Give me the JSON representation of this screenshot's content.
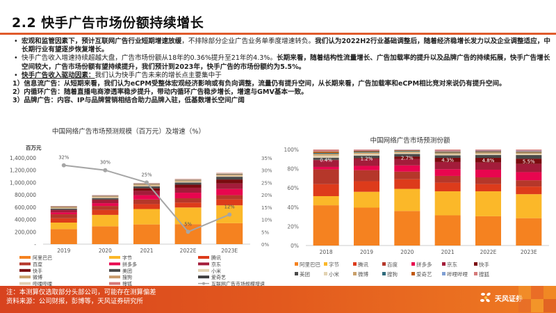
{
  "header": {
    "title": "2.2 快手广告市场份额持续增长"
  },
  "bullets": [
    {
      "segments": [
        {
          "text": "宏观和监管因素下，预计互联网广告行业短期增速放缓",
          "style": "b"
        },
        {
          "text": "，不排除部分企业广告业务单季度增速转负。",
          "style": ""
        },
        {
          "text": "我们认为2022H2行业基础调整后，随着经济稳增长发力以及企业调整适应，中长期行业有望逐步恢复增长。",
          "style": "b"
        }
      ]
    },
    {
      "segments": [
        {
          "text": "快手广告收入增速持续超越大盘，广告市场份额从18年的0.36%提升至21年的4.3%。",
          "style": ""
        },
        {
          "text": "长期来看，随着结构性流量增长、广告加载率的提升以及品牌广告的持续拓展，快手广告增长空间较大，广告市场份额有望持续提升，我们预计到2023年，快手广告的市场份额约为5.5%。",
          "style": "b"
        }
      ]
    },
    {
      "segments": [
        {
          "text": "快手广告收入驱动因素：",
          "style": "u"
        },
        {
          "text": "我们认为快手广告未来的增长点主要集中于",
          "style": ""
        }
      ]
    }
  ],
  "points": [
    "1）信息流广告：从短期来看，我们认为eCPM受整体宏观经济影响或有负向调整，流量仍有提升空间，从长期来看，广告加载率和eCPM相比竞对来说仍有提升空间。",
    "2）内循环广告：随着直播电商渗透率稳步提升，带动内循环广告稳步增长，增速与GMV基本一致。",
    "3）品牌广告：内容、IP与品牌营销相结合助力品牌入驻，低基数增长空间广阔"
  ],
  "footer": {
    "note": "注：本测算仅选取部分头部公司，可能存在测算偏差",
    "source": "资料来源：公司财报，彭博等，天风证券研究所",
    "logo_text": "天风证券"
  },
  "chart_data": [
    {
      "type": "bar",
      "stacked": true,
      "title": "中国网络广告市场预测规模（百万元）及增速（%）",
      "ylabel": "百万元",
      "ylim": [
        0,
        1400000
      ],
      "y_ticks": [
        "-",
        "200,000",
        "400,000",
        "600,000",
        "800,000",
        "1,000,000",
        "1,200,000",
        "1,400,000"
      ],
      "y2lim": [
        0,
        35
      ],
      "y2_ticks": [
        "0%",
        "5%",
        "10%",
        "15%",
        "20%",
        "25%",
        "30%",
        "35%"
      ],
      "categories": [
        "2019",
        "2020",
        "2021",
        "2022E",
        "2023E"
      ],
      "series": [
        {
          "name": "阿里巴巴",
          "color": "#f58220",
          "values": [
            245000,
            290000,
            320000,
            325000,
            340000
          ]
        },
        {
          "name": "字节",
          "color": "#fbb829",
          "values": [
            105000,
            185000,
            250000,
            270000,
            290000
          ]
        },
        {
          "name": "腾讯",
          "color": "#dd3b1b",
          "values": [
            70000,
            80000,
            80000,
            80000,
            95000
          ]
        },
        {
          "name": "百度",
          "color": "#b5372a",
          "values": [
            65000,
            65000,
            75000,
            70000,
            70000
          ]
        },
        {
          "name": "拼多多",
          "color": "#e8064f",
          "values": [
            30000,
            45000,
            70000,
            90000,
            100000
          ]
        },
        {
          "name": "京东",
          "color": "#a31c3a",
          "values": [
            40000,
            50000,
            70000,
            80000,
            90000
          ]
        },
        {
          "name": "快手",
          "color": "#7a0b0f",
          "values": [
            2000,
            10000,
            42000,
            50000,
            64000
          ]
        },
        {
          "name": "美团",
          "color": "#4a4a4a",
          "values": [
            20000,
            22000,
            30000,
            35000,
            45000
          ]
        },
        {
          "name": "小米",
          "color": "#e3d3b3",
          "values": [
            10000,
            12000,
            14000,
            15000,
            16000
          ]
        },
        {
          "name": "微博",
          "color": "#c9a06a",
          "values": [
            12000,
            13000,
            15000,
            15000,
            16000
          ]
        },
        {
          "name": "搜狗",
          "color": "#c89a6a",
          "values": [
            6000,
            6000,
            6000,
            6000,
            6000
          ]
        },
        {
          "name": "爱奇艺",
          "color": "#3e3e3e",
          "values": [
            6000,
            6000,
            7000,
            7000,
            8000
          ]
        },
        {
          "name": "哔哩哔哩",
          "color": "#e2cfb3",
          "values": [
            4000,
            6000,
            10000,
            12000,
            15000
          ]
        },
        {
          "name": "搜狐",
          "color": "#d57a7a",
          "values": [
            5000,
            5000,
            5000,
            5000,
            5000
          ]
        }
      ],
      "line": {
        "name": "互联网广告市场规模增速",
        "color": "#a6a6a6",
        "values": [
          32,
          30,
          25,
          5,
          12
        ],
        "labels": [
          "32%",
          "30%",
          "25%",
          "5%",
          "12%"
        ]
      },
      "legend": "bottom"
    },
    {
      "type": "bar",
      "stacked": true,
      "percent": true,
      "title": "中国网络广告市场预测份额",
      "ylim": [
        0,
        100
      ],
      "y_ticks": [
        "0%",
        "20%",
        "40%",
        "60%",
        "80%",
        "100%"
      ],
      "categories": [
        "2018",
        "2019",
        "2020",
        "2021",
        "2022E",
        "2023E"
      ],
      "series": [
        {
          "name": "阿里巴巴",
          "color": "#f58220",
          "values": [
            42,
            39.5,
            36,
            31.5,
            30.5,
            28.5
          ]
        },
        {
          "name": "字节",
          "color": "#fbb829",
          "values": [
            9.5,
            16.5,
            23,
            25,
            26,
            25
          ]
        },
        {
          "name": "腾讯",
          "color": "#dd3b1b",
          "values": [
            12.5,
            11,
            10,
            9,
            7.5,
            8
          ]
        },
        {
          "name": "百度",
          "color": "#b5372a",
          "values": [
            15.5,
            11.5,
            8,
            7,
            7,
            6.5
          ]
        },
        {
          "name": "拼多多",
          "color": "#e8064f",
          "values": [
            2.5,
            4.5,
            6.5,
            7,
            8,
            8.5
          ]
        },
        {
          "name": "京东",
          "color": "#a31c3a",
          "values": [
            7,
            7,
            6.5,
            7.5,
            7.5,
            8.5
          ]
        },
        {
          "name": "快手",
          "color": "#7a0b0f",
          "values": [
            0.4,
            1.2,
            2.7,
            4.3,
            4.8,
            5.5
          ]
        },
        {
          "name": "美团",
          "color": "#4a4a4a",
          "values": [
            2.2,
            2.5,
            2.6,
            2.7,
            3.1,
            3.7
          ]
        },
        {
          "name": "小米",
          "color": "#e3d3b3",
          "values": [
            2.2,
            1.8,
            1.4,
            1.3,
            1.3,
            1.3
          ]
        },
        {
          "name": "微博",
          "color": "#c9a06a",
          "values": [
            1.9,
            1.5,
            1.3,
            1.3,
            1.3,
            1.3
          ]
        },
        {
          "name": "搜狗",
          "color": "#2f6b7c",
          "values": [
            0.9,
            0.8,
            0.6,
            0.6,
            0.5,
            0.5
          ]
        },
        {
          "name": "爱奇艺",
          "color": "#c0580f",
          "values": [
            1.5,
            0.8,
            0.6,
            0.8,
            0.7,
            0.7
          ]
        },
        {
          "name": "哔哩哔哩",
          "color": "#7f9fd4",
          "values": [
            0.3,
            0.3,
            0.4,
            0.6,
            0.7,
            0.8
          ]
        },
        {
          "name": "搜狐",
          "color": "#d57a7a",
          "values": [
            1.7,
            1.1,
            0.4,
            1.4,
            1.1,
            1.2
          ]
        }
      ],
      "labels_series": "快手",
      "labels": [
        "0.4%",
        "1.2%",
        "2.7%",
        "4.3%",
        "4.8%",
        "5.5%"
      ],
      "legend": "bottom"
    }
  ]
}
